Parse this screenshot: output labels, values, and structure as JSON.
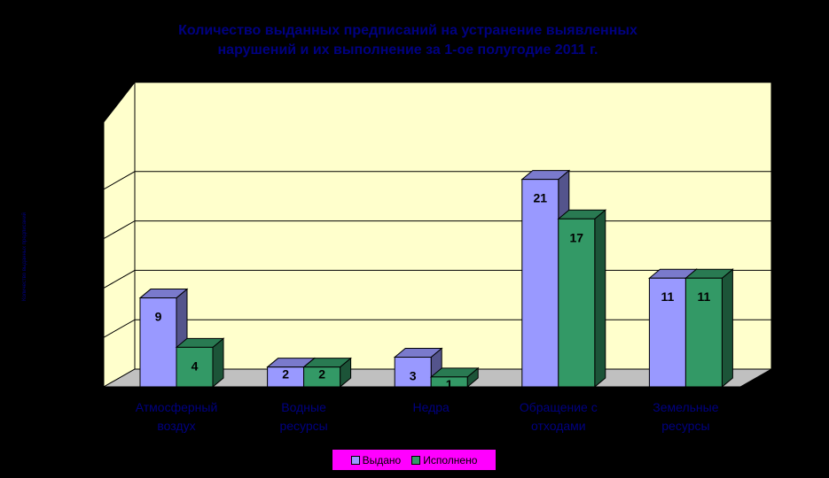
{
  "chart_data": {
    "type": "bar",
    "title_lines": [
      "Количество выданных предписаний на устранение выявленных",
      "нарушений и их выполнение за 1-ое полугодие 2011 г."
    ],
    "ylabel": "Количество выданных предписаний",
    "categories": [
      [
        "Атмосферный",
        "воздух"
      ],
      [
        "Водные",
        "ресурсы"
      ],
      [
        "Недра"
      ],
      [
        "Обращение с",
        "отходами"
      ],
      [
        "Земельные",
        "ресурсы"
      ]
    ],
    "series": [
      {
        "name": "Выдано",
        "values": [
          9,
          2,
          3,
          21,
          11
        ],
        "color": "#9999ff"
      },
      {
        "name": "Исполнено",
        "values": [
          4,
          2,
          1,
          17,
          11
        ],
        "color": "#339966"
      }
    ],
    "ylim": [
      0,
      25
    ],
    "grid": true,
    "legend_position": "bottom",
    "plot_background": "#ffffcc",
    "floor_color": "#c0c0c0",
    "text_color": "#000080"
  }
}
